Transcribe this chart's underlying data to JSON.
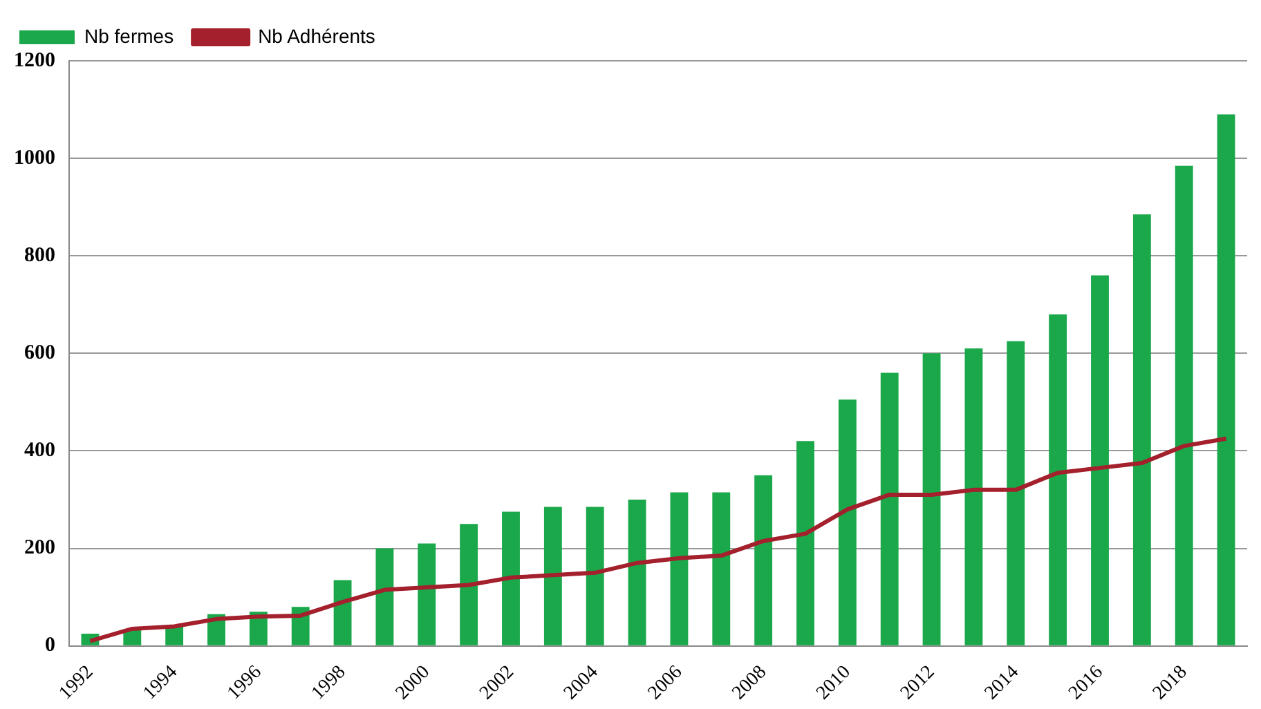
{
  "chart_data": {
    "type": "bar",
    "categories": [
      "1992",
      null,
      "1994",
      null,
      "1996",
      null,
      "1998",
      null,
      "2000",
      null,
      "2002",
      null,
      "2004",
      null,
      "2006",
      null,
      "2008",
      null,
      "2010",
      null,
      "2012",
      null,
      "2014",
      null,
      "2016",
      null,
      "2018",
      null
    ],
    "series": [
      {
        "name": "Nb fermes",
        "color": "#1aa84a",
        "values": [
          25,
          35,
          40,
          65,
          70,
          80,
          135,
          200,
          210,
          250,
          275,
          285,
          285,
          300,
          315,
          315,
          350,
          420,
          505,
          560,
          600,
          610,
          625,
          680,
          760,
          885,
          985,
          1090
        ]
      },
      {
        "name": "Nb Adhérents",
        "type": "line",
        "color": "#a3202c",
        "values": [
          10,
          35,
          40,
          55,
          60,
          62,
          90,
          115,
          120,
          125,
          140,
          145,
          150,
          170,
          180,
          185,
          215,
          230,
          280,
          310,
          310,
          320,
          320,
          355,
          365,
          375,
          410,
          425
        ]
      }
    ],
    "ylim": [
      0,
      1200
    ],
    "yticks": [
      0,
      200,
      400,
      600,
      800,
      1000,
      1200
    ],
    "grid": "y",
    "legend": "top left",
    "marker": "none"
  }
}
